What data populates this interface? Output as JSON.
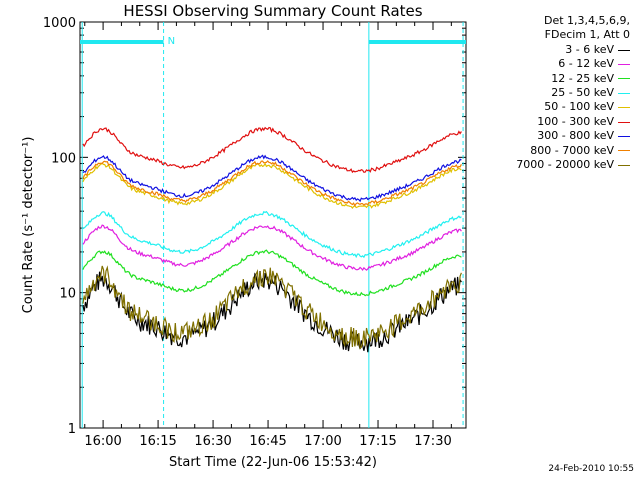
{
  "chart_data": {
    "type": "line",
    "title": "HESSI Observing Summary Count Rates",
    "xlabel": "Start Time (22-Jun-06 15:53:42)",
    "ylabel": "Count Rate (s⁻¹ detector⁻¹)",
    "yscale": "log",
    "ylim": [
      1,
      1000
    ],
    "xlim_minutes": [
      -6.3,
      99.0
    ],
    "x_ticks": [
      "16:00",
      "16:15",
      "16:30",
      "16:45",
      "17:00",
      "17:15",
      "17:30"
    ],
    "y_ticks": [
      "1",
      "10",
      "100",
      "1000"
    ],
    "legend_header": [
      "Det 1,3,4,5,6,9,",
      "FDecim 1, Att 0"
    ],
    "legend_position": "right",
    "series": [
      {
        "name": "3 - 6 keV",
        "color": "#000000",
        "base": 6.5,
        "floor": 2.5
      },
      {
        "name": "6 - 12 keV",
        "color": "#e020e0",
        "base": 20
      },
      {
        "name": "12 - 25 keV",
        "color": "#20e020",
        "base": 13
      },
      {
        "name": "25 - 50 keV",
        "color": "#20f0f0",
        "base": 25
      },
      {
        "name": "50 - 100 keV",
        "color": "#e0c000",
        "base": 57
      },
      {
        "name": "100 - 300 keV",
        "color": "#e01010",
        "base": 105
      },
      {
        "name": "300 - 800 keV",
        "color": "#1010e0",
        "base": 65
      },
      {
        "name": "800 - 7000 keV",
        "color": "#f08000",
        "base": 60
      },
      {
        "name": "7000 - 20000 keV",
        "color": "#807000",
        "base": 7,
        "floor": 2.5
      }
    ],
    "annotations": [
      {
        "label": "N",
        "x_minutes": 16.5
      },
      {
        "label": "",
        "x_minutes": 72.5
      }
    ],
    "night_intervals_minutes": [
      [
        -6.3,
        16.5
      ],
      [
        72.5,
        99.0
      ]
    ]
  },
  "footer": "24-Feb-2010 10:55"
}
